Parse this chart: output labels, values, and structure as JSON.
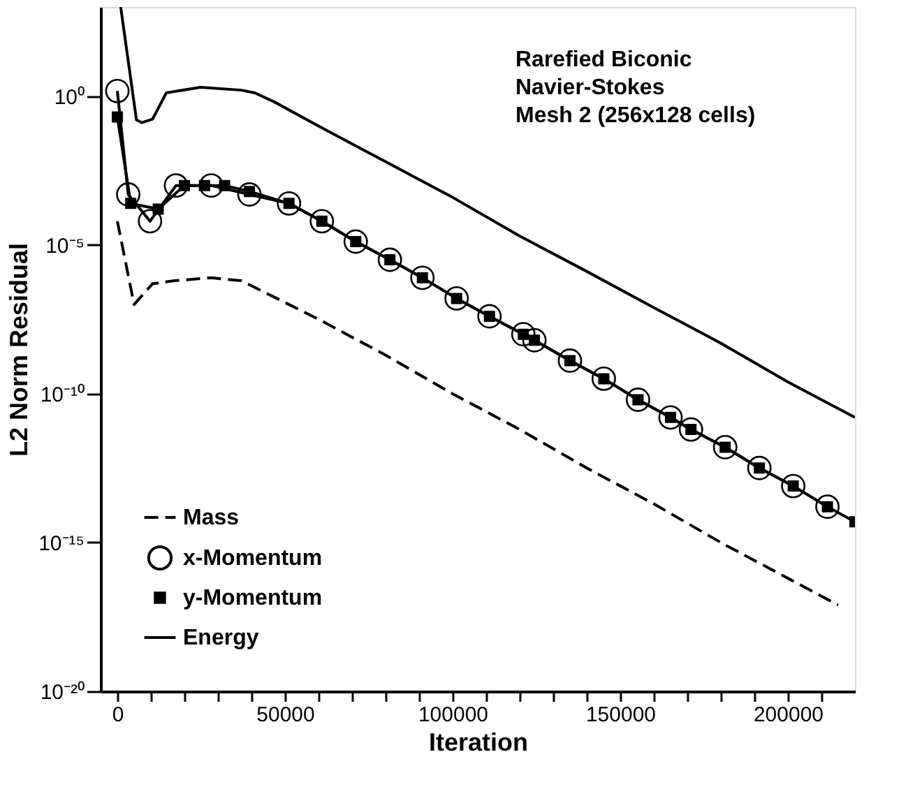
{
  "chart_data": {
    "type": "line",
    "title": "Rarefied Biconic\nNavier-Stokes\nMesh 2 (256x128 cells)",
    "xlabel": "Iteration",
    "ylabel": "L2 Norm Residual",
    "log": "y",
    "legend": "bottom left",
    "grid": false,
    "xlim": [
      -5000,
      220000
    ],
    "ylim": [
      1e-20,
      1000
    ],
    "xticks": [
      0,
      {
        "value": 10000,
        "label": null
      },
      {
        "value": 20000,
        "label": null
      },
      {
        "value": 30000,
        "label": null
      },
      {
        "value": 40000,
        "label": null
      },
      50000,
      {
        "value": 60000,
        "label": null
      },
      {
        "value": 70000,
        "label": null
      },
      {
        "value": 80000,
        "label": null
      },
      {
        "value": 90000,
        "label": null
      },
      100000,
      {
        "value": 110000,
        "label": null
      },
      {
        "value": 120000,
        "label": null
      },
      {
        "value": 130000,
        "label": null
      },
      {
        "value": 140000,
        "label": null
      },
      150000,
      {
        "value": 160000,
        "label": null
      },
      {
        "value": 170000,
        "label": null
      },
      {
        "value": 180000,
        "label": null
      },
      {
        "value": 190000,
        "label": null
      },
      200000,
      {
        "value": 210000,
        "label": null
      }
    ],
    "yticks": [
      {
        "value": 1,
        "label": "10⁰"
      },
      {
        "value": 1e-05,
        "label": "10⁻⁵"
      },
      {
        "value": 1e-10,
        "label": "10⁻¹⁰"
      },
      {
        "value": 1e-15,
        "label": "10⁻¹⁵"
      },
      {
        "value": 1e-20,
        "label": "10⁻²⁰"
      }
    ],
    "series": [
      {
        "name": "Mass",
        "color": "#000000",
        "line_style": "dashed",
        "marker": "none",
        "x": [
          0,
          5000,
          10500,
          17000,
          28000,
          37000,
          60000,
          80000,
          100000,
          120000,
          140000,
          160000,
          180000,
          200000,
          215000
        ],
        "values": [
          6.3e-05,
          1e-07,
          5e-07,
          6.3e-07,
          7.9e-07,
          6.3e-07,
          3.2e-08,
          2e-09,
          1e-10,
          6.3e-12,
          3.2e-13,
          2e-14,
          1e-15,
          6.3e-17,
          7.9e-18
        ]
      },
      {
        "name": "x-Momentum",
        "color": "#000000",
        "line_style": "solid",
        "marker": "circle",
        "x": [
          0,
          3250,
          9750,
          17500,
          28000,
          39400,
          51200,
          61000,
          71100,
          81300,
          91000,
          101200,
          111000,
          121100,
          124400,
          135000,
          145100,
          155300,
          165000,
          171100,
          181300,
          191500,
          201600,
          211800
        ],
        "values": [
          1.5,
          0.0005,
          6.3e-05,
          0.001,
          0.001,
          0.0005,
          0.00025,
          6.3e-05,
          1.3e-05,
          3.2e-06,
          7.9e-07,
          1.6e-07,
          4e-08,
          1e-08,
          6.3e-09,
          1.3e-09,
          3.2e-10,
          6.3e-11,
          1.6e-11,
          6.3e-12,
          1.6e-12,
          3.2e-13,
          7.9e-14,
          1.6e-14
        ]
      },
      {
        "name": "y-Momentum",
        "color": "#000000",
        "line_style": "solid",
        "marker": "square",
        "x": [
          0,
          4000,
          12200,
          20000,
          26000,
          32000,
          39400,
          51200,
          61000,
          71100,
          81300,
          91000,
          101200,
          111000,
          121100,
          124400,
          135000,
          145100,
          155300,
          165000,
          171100,
          181300,
          191500,
          201600,
          211800,
          220000
        ],
        "values": [
          0.2,
          0.00025,
          0.00016,
          0.001,
          0.001,
          0.001,
          0.00063,
          0.00025,
          6.3e-05,
          1.3e-05,
          3.2e-06,
          7.9e-07,
          1.6e-07,
          4e-08,
          1e-08,
          6.3e-09,
          1.3e-09,
          3.2e-10,
          6.3e-11,
          1.6e-11,
          6.3e-12,
          1.6e-12,
          3.2e-13,
          7.9e-14,
          1.6e-14,
          5e-15
        ]
      },
      {
        "name": "Energy",
        "color": "#000000",
        "line_style": "solid",
        "marker": "none",
        "x": [
          1000,
          5700,
          7300,
          10500,
          14600,
          24800,
          37000,
          41000,
          47000,
          60000,
          80000,
          100000,
          120000,
          140000,
          160000,
          180000,
          200000,
          220000
        ],
        "values": [
          1000,
          0.16,
          0.13,
          0.17,
          1.3,
          2.0,
          1.6,
          1.3,
          0.63,
          0.1,
          0.0063,
          0.0004,
          2e-05,
          1.3e-06,
          7.9e-08,
          5e-09,
          2.5e-10,
          1.6e-11
        ]
      }
    ]
  }
}
